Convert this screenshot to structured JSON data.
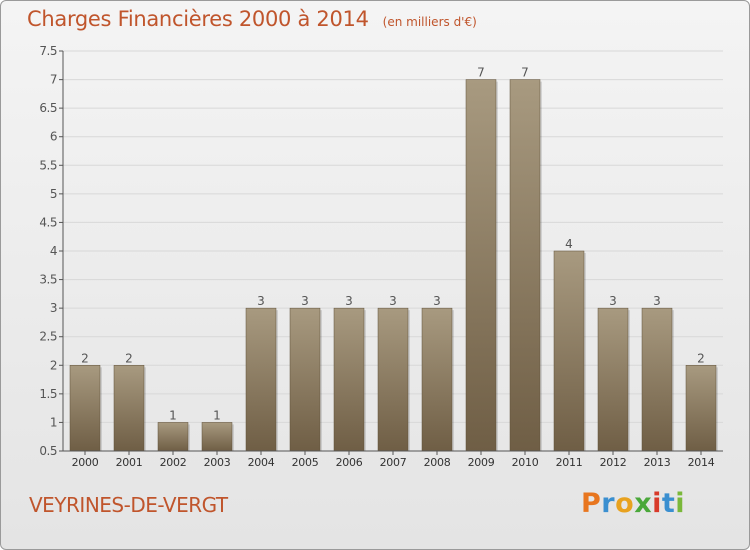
{
  "title": "Charges Financières 2000 à 2014",
  "unit": "(en milliers d'€)",
  "commune": "VEYRINES-DE-VERGT",
  "brand": {
    "letters": [
      "P",
      "r",
      "o",
      "x",
      "i",
      "t",
      "i"
    ],
    "colors": [
      "#e8761f",
      "#3a8fd0",
      "#e8a21f",
      "#4aa83a",
      "#d83a2a",
      "#3a8fd0",
      "#7ab83a"
    ]
  },
  "colors": {
    "bar_top": "#a89a80",
    "bar_bottom": "#6f5e45",
    "text": "#c0552c",
    "axis": "#555555",
    "grid": "#d8d8d8"
  },
  "chart_data": {
    "type": "bar",
    "categories": [
      "2000",
      "2001",
      "2002",
      "2003",
      "2004",
      "2005",
      "2006",
      "2007",
      "2008",
      "2009",
      "2010",
      "2011",
      "2012",
      "2013",
      "2014"
    ],
    "values": [
      2,
      2,
      1,
      1,
      3,
      3,
      3,
      3,
      3,
      7,
      7,
      4,
      3,
      3,
      2
    ],
    "data_labels": [
      "2",
      "2",
      "1",
      "1",
      "3",
      "3",
      "3",
      "3",
      "3",
      "7",
      "7",
      "4",
      "3",
      "3",
      "2"
    ],
    "title": "Charges Financières 2000 à 2014",
    "xlabel": "",
    "ylabel": "",
    "ylim": [
      0.5,
      7.5
    ],
    "yticks": [
      0.5,
      1,
      1.5,
      2,
      2.5,
      3,
      3.5,
      4,
      4.5,
      5,
      5.5,
      6,
      6.5,
      7,
      7.5
    ],
    "ytick_labels": [
      "0.5",
      "1",
      "1.5",
      "2",
      "2.5",
      "3",
      "3.5",
      "4",
      "4.5",
      "5",
      "5.5",
      "6",
      "6.5",
      "7",
      "7.5"
    ],
    "grid": true,
    "legend": "none"
  }
}
